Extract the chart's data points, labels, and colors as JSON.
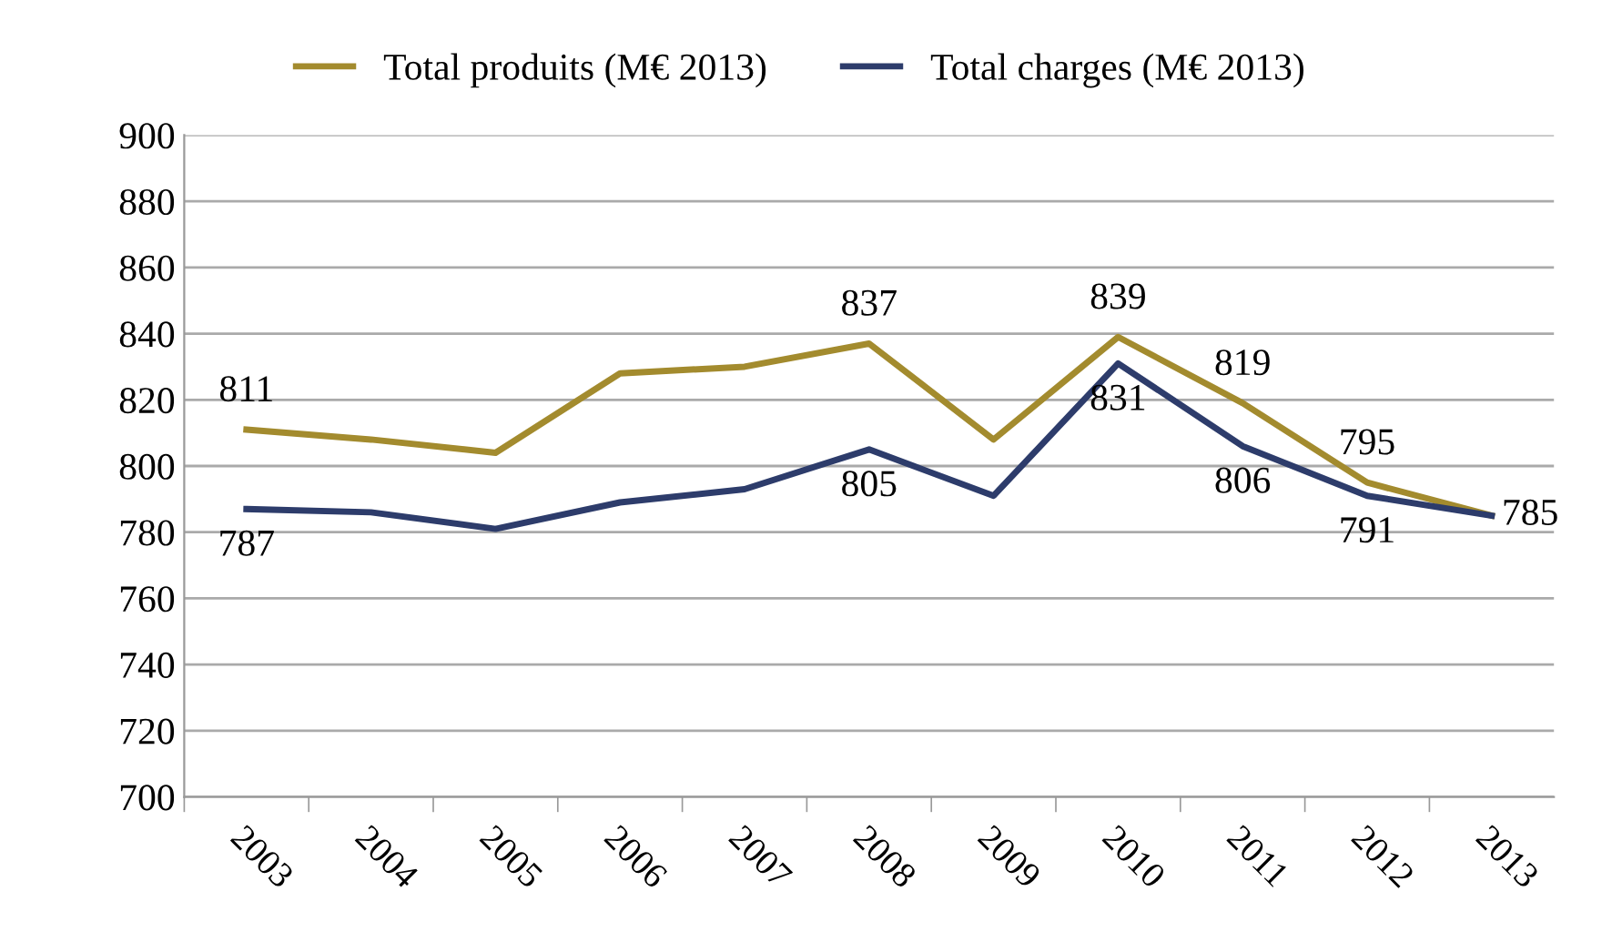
{
  "chart_data": {
    "type": "line",
    "categories": [
      "2003",
      "2004",
      "2005",
      "2006",
      "2007",
      "2008",
      "2009",
      "2010",
      "2011",
      "2012",
      "2013"
    ],
    "series": [
      {
        "name": "Total produits (M€ 2013)",
        "color": "#a38b2e",
        "values": [
          811,
          808,
          804,
          828,
          830,
          837,
          808,
          839,
          819,
          795,
          785
        ],
        "value_labels": [
          "811",
          null,
          null,
          null,
          null,
          "837",
          null,
          "839",
          "819",
          "795",
          null
        ]
      },
      {
        "name": "Total charges (M€ 2013)",
        "color": "#2d3c6b",
        "values": [
          787,
          786,
          781,
          789,
          793,
          805,
          791,
          831,
          806,
          791,
          785
        ],
        "value_labels": [
          "787",
          null,
          null,
          null,
          null,
          "805",
          null,
          "831",
          "806",
          "791",
          "785"
        ]
      }
    ],
    "ylim": [
      700,
      900
    ],
    "yticks": [
      700,
      720,
      740,
      760,
      780,
      800,
      820,
      840,
      860,
      880,
      900
    ],
    "grid": "y",
    "legend": "top",
    "marker": "none",
    "line_style": "solid"
  }
}
